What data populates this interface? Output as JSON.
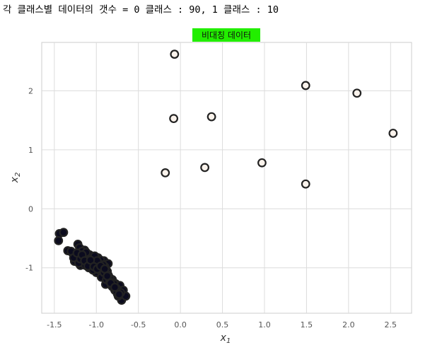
{
  "printout": "각 클래스별 데이터의 갯수 = 0 클래스 : 90, 1 클래스 : 10",
  "chart_data": {
    "type": "scatter",
    "title": "비대칭 데이터",
    "title_highlight_color": "#22ee00",
    "xlabel": "x",
    "xlabel_sub": "1",
    "ylabel": "x",
    "ylabel_sub": "2",
    "xlim": [
      -1.65,
      2.75
    ],
    "ylim": [
      -1.77,
      2.82
    ],
    "xticks": [
      -1.5,
      -1.0,
      -0.5,
      0.0,
      0.5,
      1.0,
      1.5,
      2.0,
      2.5
    ],
    "xtick_labels": [
      "-1.5",
      "-1.0",
      "-0.5",
      "0.0",
      "0.5",
      "1.0",
      "1.5",
      "2.0",
      "2.5"
    ],
    "yticks": [
      -1,
      0,
      1,
      2
    ],
    "ytick_labels": [
      "-1",
      "0",
      "1",
      "2"
    ],
    "grid": true,
    "series": [
      {
        "class": 0,
        "fill": "#0b0b1e",
        "stroke": "#222222",
        "points": [
          [
            -1.44,
            -0.42
          ],
          [
            -1.39,
            -0.4
          ],
          [
            -1.45,
            -0.54
          ],
          [
            -1.34,
            -0.71
          ],
          [
            -1.29,
            -0.74
          ],
          [
            -1.22,
            -0.6
          ],
          [
            -1.2,
            -0.66
          ],
          [
            -1.26,
            -0.89
          ],
          [
            -1.18,
            -0.77
          ],
          [
            -1.14,
            -0.7
          ],
          [
            -1.19,
            -0.96
          ],
          [
            -1.16,
            -0.84
          ],
          [
            -1.11,
            -0.9
          ],
          [
            -1.08,
            -0.78
          ],
          [
            -1.05,
            -1.02
          ],
          [
            -1.03,
            -0.86
          ],
          [
            -1.01,
            -0.95
          ],
          [
            -0.98,
            -0.83
          ],
          [
            -0.96,
            -1.1
          ],
          [
            -0.94,
            -0.92
          ],
          [
            -0.93,
            -1.0
          ],
          [
            -0.91,
            -0.88
          ],
          [
            -0.88,
            -1.05
          ],
          [
            -0.86,
            -0.93
          ],
          [
            -0.85,
            -1.15
          ],
          [
            -0.83,
            -1.22
          ],
          [
            -0.81,
            -1.2
          ],
          [
            -0.79,
            -1.33
          ],
          [
            -0.77,
            -1.27
          ],
          [
            -0.75,
            -1.44
          ],
          [
            -0.72,
            -1.3
          ],
          [
            -0.7,
            -1.55
          ],
          [
            -0.68,
            -1.38
          ],
          [
            -0.65,
            -1.48
          ],
          [
            -1.24,
            -0.82
          ],
          [
            -1.21,
            -0.92
          ],
          [
            -1.17,
            -0.72
          ],
          [
            -1.13,
            -0.96
          ],
          [
            -1.1,
            -0.84
          ],
          [
            -1.07,
            -0.93
          ],
          [
            -1.05,
            -0.89
          ],
          [
            -1.02,
            -0.8
          ],
          [
            -1.0,
            -1.08
          ],
          [
            -0.99,
            -0.96
          ],
          [
            -0.97,
            -1.0
          ],
          [
            -0.95,
            -0.87
          ],
          [
            -0.92,
            -1.12
          ],
          [
            -0.9,
            -0.98
          ],
          [
            -0.89,
            -1.28
          ],
          [
            -0.87,
            -1.06
          ],
          [
            -0.84,
            -1.18
          ],
          [
            -0.82,
            -1.3
          ],
          [
            -0.8,
            -1.25
          ],
          [
            -0.78,
            -1.38
          ],
          [
            -0.76,
            -1.35
          ],
          [
            -0.74,
            -1.48
          ],
          [
            -0.71,
            -1.42
          ],
          [
            -1.3,
            -0.72
          ],
          [
            -1.27,
            -0.83
          ],
          [
            -1.23,
            -0.75
          ],
          [
            -1.19,
            -0.85
          ],
          [
            -1.15,
            -0.8
          ],
          [
            -1.12,
            -0.74
          ],
          [
            -1.09,
            -1.0
          ],
          [
            -1.06,
            -0.94
          ],
          [
            -1.04,
            -1.04
          ],
          [
            -1.01,
            -0.91
          ],
          [
            -0.99,
            -0.88
          ],
          [
            -0.96,
            -1.04
          ],
          [
            -0.94,
            -1.16
          ],
          [
            -0.92,
            -0.95
          ],
          [
            -0.91,
            -1.08
          ],
          [
            -0.88,
            -1.2
          ],
          [
            -0.86,
            -1.12
          ],
          [
            -0.84,
            -1.24
          ],
          [
            -0.81,
            -1.32
          ],
          [
            -0.79,
            -1.27
          ],
          [
            -0.76,
            -1.4
          ],
          [
            -0.73,
            -1.45
          ],
          [
            -1.17,
            -0.78
          ],
          [
            -1.14,
            -0.88
          ],
          [
            -1.1,
            -0.97
          ],
          [
            -1.07,
            -0.87
          ],
          [
            -1.03,
            -0.98
          ],
          [
            -0.99,
            -1.02
          ],
          [
            -0.95,
            -0.97
          ],
          [
            -0.9,
            -1.02
          ],
          [
            -0.87,
            -1.14
          ],
          [
            -0.83,
            -1.26
          ],
          [
            -0.78,
            -1.33
          ]
        ]
      },
      {
        "class": 1,
        "fill": "#fbf3ec",
        "stroke": "#222222",
        "points": [
          [
            -0.07,
            2.62
          ],
          [
            1.49,
            2.09
          ],
          [
            2.1,
            1.96
          ],
          [
            -0.08,
            1.53
          ],
          [
            0.37,
            1.56
          ],
          [
            2.53,
            1.28
          ],
          [
            -0.18,
            0.61
          ],
          [
            0.29,
            0.7
          ],
          [
            0.97,
            0.78
          ],
          [
            1.49,
            0.42
          ]
        ]
      }
    ]
  }
}
